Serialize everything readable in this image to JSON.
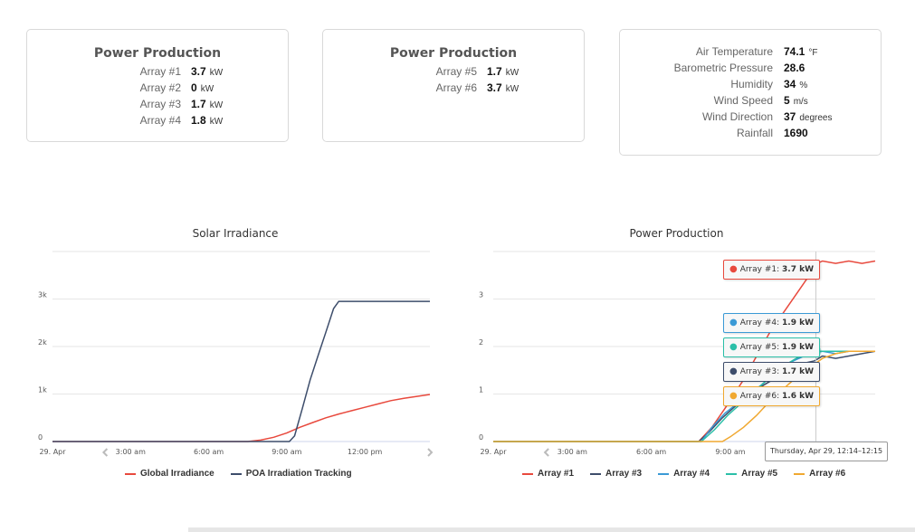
{
  "cards": [
    {
      "title": "Power Production",
      "rows": [
        {
          "label": "Array #1",
          "value": "3.7",
          "unit": "kW"
        },
        {
          "label": "Array #2",
          "value": "0",
          "unit": "kW"
        },
        {
          "label": "Array #3",
          "value": "1.7",
          "unit": "kW"
        },
        {
          "label": "Array #4",
          "value": "1.8",
          "unit": "kW"
        }
      ]
    },
    {
      "title": "Power Production",
      "rows": [
        {
          "label": "Array #5",
          "value": "1.7",
          "unit": "kW"
        },
        {
          "label": "Array #6",
          "value": "3.7",
          "unit": "kW"
        }
      ]
    },
    {
      "title": "",
      "rows": [
        {
          "label": "Air Temperature",
          "value": "74.1",
          "unit": "°F"
        },
        {
          "label": "Barometric Pressure",
          "value": "28.6",
          "unit": ""
        },
        {
          "label": "Humidity",
          "value": "34",
          "unit": "%"
        },
        {
          "label": "Wind Speed",
          "value": "5",
          "unit": "m/s"
        },
        {
          "label": "Wind Direction",
          "value": "37",
          "unit": "degrees"
        },
        {
          "label": "Rainfall",
          "value": "1690",
          "unit": ""
        }
      ]
    }
  ],
  "colors": {
    "global_irradiance": "#e8493d",
    "poa": "#3d4d6b",
    "array1": "#e8493d",
    "array3": "#3d4d6b",
    "array4": "#3b9ad6",
    "array5": "#2bbfa8",
    "array6": "#f0a830"
  },
  "chart_data": [
    {
      "type": "line",
      "title": "Solar Irradiance",
      "xlabel": "",
      "ylabel": "",
      "x_ticks": [
        "29. Apr",
        "3:00 am",
        "6:00 am",
        "9:00 am",
        "12:00 pm"
      ],
      "y_ticks": [
        "0",
        "1k",
        "2k",
        "3k"
      ],
      "ylim": [
        0,
        4000
      ],
      "x_unit": "hours since 29. Apr 00:00",
      "xlim": [
        0,
        14.5
      ],
      "series": [
        {
          "name": "Global Irradiance",
          "color": "#e8493d",
          "points": [
            [
              0,
              0
            ],
            [
              7.5,
              0
            ],
            [
              8,
              30
            ],
            [
              8.5,
              90
            ],
            [
              9,
              180
            ],
            [
              9.5,
              300
            ],
            [
              10,
              400
            ],
            [
              10.5,
              500
            ],
            [
              11,
              580
            ],
            [
              11.5,
              650
            ],
            [
              12,
              720
            ],
            [
              12.5,
              790
            ],
            [
              13,
              860
            ],
            [
              13.5,
              910
            ],
            [
              14,
              950
            ],
            [
              14.5,
              990
            ]
          ]
        },
        {
          "name": "POA Irradiation Tracking",
          "color": "#3d4d6b",
          "points": [
            [
              0,
              0
            ],
            [
              9.1,
              0
            ],
            [
              9.3,
              120
            ],
            [
              9.6,
              700
            ],
            [
              9.9,
              1300
            ],
            [
              10.2,
              1800
            ],
            [
              10.5,
              2300
            ],
            [
              10.8,
              2800
            ],
            [
              11,
              2950
            ],
            [
              11.5,
              2950
            ],
            [
              12,
              2950
            ],
            [
              13,
              2950
            ],
            [
              14,
              2950
            ],
            [
              14.5,
              2950
            ]
          ]
        }
      ],
      "legend_position": "bottom"
    },
    {
      "type": "line",
      "title": "Power Production",
      "xlabel": "",
      "ylabel": "",
      "x_ticks": [
        "29. Apr",
        "3:00 am",
        "6:00 am",
        "9:00 am",
        "12:00 pm"
      ],
      "y_ticks": [
        "0",
        "1",
        "2",
        "3"
      ],
      "ylim": [
        0,
        4
      ],
      "x_unit": "hours since 29. Apr 00:00",
      "xlim": [
        0,
        14.5
      ],
      "series": [
        {
          "name": "Array #1",
          "color": "#e8493d",
          "points": [
            [
              0,
              0
            ],
            [
              7.8,
              0
            ],
            [
              8.3,
              0.3
            ],
            [
              8.8,
              0.7
            ],
            [
              9.5,
              1.3
            ],
            [
              10,
              1.8
            ],
            [
              10.5,
              2.3
            ],
            [
              11,
              2.7
            ],
            [
              11.5,
              3.1
            ],
            [
              12,
              3.5
            ],
            [
              12.3,
              3.75
            ],
            [
              12.5,
              3.8
            ],
            [
              13,
              3.75
            ],
            [
              13.5,
              3.8
            ],
            [
              14,
              3.75
            ],
            [
              14.5,
              3.8
            ]
          ]
        },
        {
          "name": "Array #3",
          "color": "#3d4d6b",
          "points": [
            [
              0,
              0
            ],
            [
              7.8,
              0
            ],
            [
              8.2,
              0.2
            ],
            [
              8.7,
              0.5
            ],
            [
              9.3,
              0.8
            ],
            [
              10,
              1.1
            ],
            [
              10.6,
              1.3
            ],
            [
              11.2,
              1.5
            ],
            [
              11.8,
              1.65
            ],
            [
              12.2,
              1.7
            ],
            [
              12.5,
              1.8
            ],
            [
              13,
              1.75
            ],
            [
              13.5,
              1.8
            ],
            [
              14,
              1.85
            ],
            [
              14.5,
              1.9
            ]
          ]
        },
        {
          "name": "Array #4",
          "color": "#3b9ad6",
          "points": [
            [
              0,
              0
            ],
            [
              7.9,
              0
            ],
            [
              8.3,
              0.3
            ],
            [
              8.8,
              0.6
            ],
            [
              9.5,
              0.9
            ],
            [
              10.2,
              1.2
            ],
            [
              10.8,
              1.5
            ],
            [
              11.4,
              1.7
            ],
            [
              12,
              1.85
            ],
            [
              12.5,
              1.9
            ],
            [
              13,
              1.85
            ],
            [
              13.5,
              1.9
            ],
            [
              14,
              1.9
            ],
            [
              14.5,
              1.9
            ]
          ]
        },
        {
          "name": "Array #5",
          "color": "#2bbfa8",
          "points": [
            [
              0,
              0
            ],
            [
              7.9,
              0
            ],
            [
              8.4,
              0.25
            ],
            [
              8.9,
              0.55
            ],
            [
              9.6,
              0.9
            ],
            [
              10.3,
              1.25
            ],
            [
              10.9,
              1.55
            ],
            [
              11.5,
              1.75
            ],
            [
              12,
              1.9
            ],
            [
              12.5,
              1.9
            ],
            [
              13,
              1.9
            ],
            [
              14,
              1.9
            ],
            [
              14.5,
              1.9
            ]
          ]
        },
        {
          "name": "Array #6",
          "color": "#f0a830",
          "points": [
            [
              0,
              0
            ],
            [
              8.7,
              0
            ],
            [
              9,
              0.1
            ],
            [
              9.5,
              0.3
            ],
            [
              10,
              0.55
            ],
            [
              10.5,
              0.85
            ],
            [
              11,
              1.1
            ],
            [
              11.5,
              1.35
            ],
            [
              12,
              1.55
            ],
            [
              12.5,
              1.75
            ],
            [
              13,
              1.85
            ],
            [
              13.5,
              1.9
            ],
            [
              14,
              1.9
            ],
            [
              14.5,
              1.9
            ]
          ]
        }
      ],
      "tooltips": [
        {
          "series": "Array #1",
          "value": "3.7 kW",
          "color": "#e8493d"
        },
        {
          "series": "Array #4",
          "value": "1.9 kW",
          "color": "#3b9ad6"
        },
        {
          "series": "Array #5",
          "value": "1.9 kW",
          "color": "#2bbfa8"
        },
        {
          "series": "Array #3",
          "value": "1.7 kW",
          "color": "#3d4d6b"
        },
        {
          "series": "Array #6",
          "value": "1.6 kW",
          "color": "#f0a830"
        }
      ],
      "crosshair_label": "Thursday, Apr 29, 12:14–12:15",
      "legend_position": "bottom"
    }
  ]
}
